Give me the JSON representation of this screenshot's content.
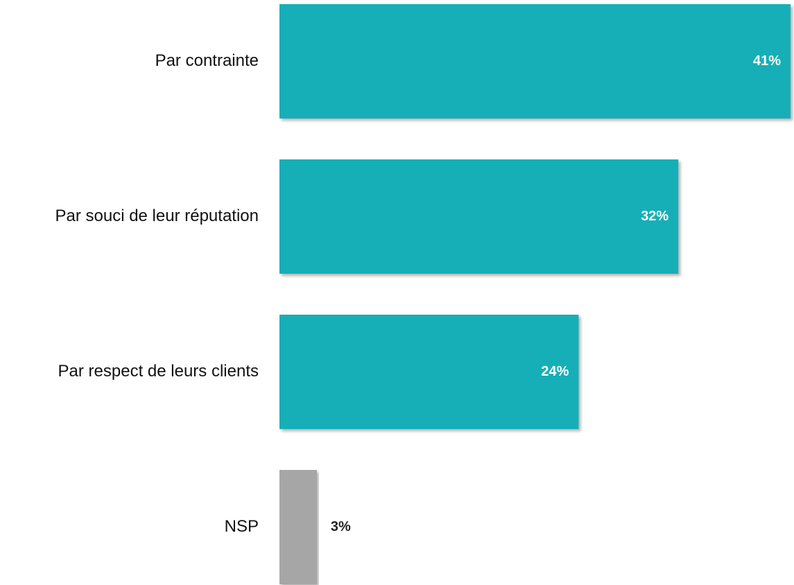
{
  "chart_data": {
    "type": "hbar",
    "categories": [
      "Par contrainte",
      "Par souci de leur réputation",
      "Par respect de leurs clients",
      "NSP"
    ],
    "values": [
      41,
      32,
      24,
      3
    ],
    "value_labels": [
      "41%",
      "32%",
      "24%",
      "3%"
    ],
    "colors": [
      "#14afb7",
      "#14afb7",
      "#14afb7",
      "#a6a6a6"
    ]
  }
}
